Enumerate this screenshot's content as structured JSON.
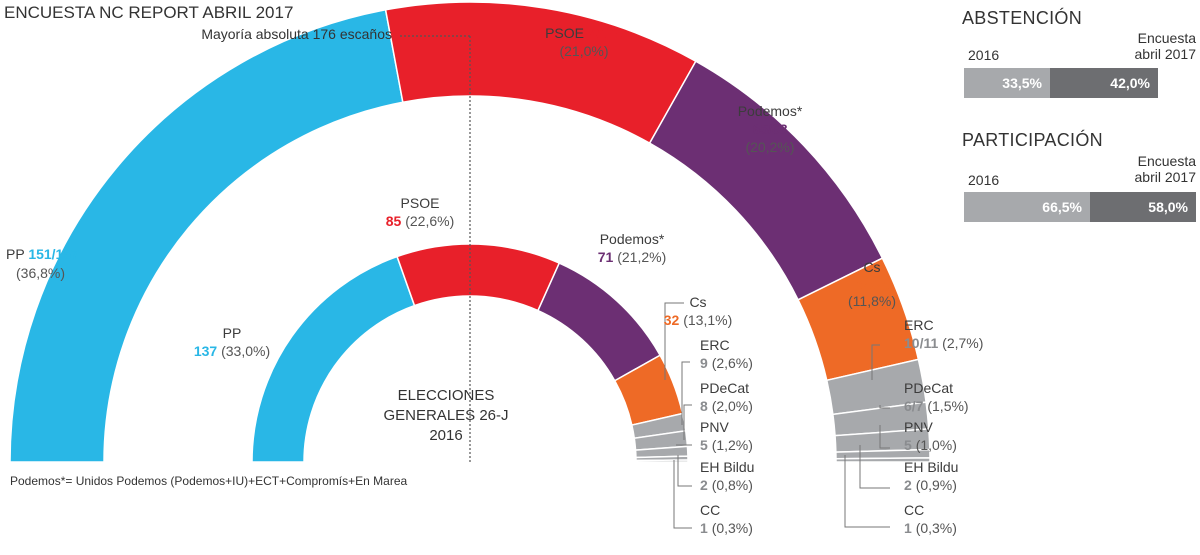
{
  "colors": {
    "PP": "#29b7e6",
    "PSOE": "#e8202a",
    "Podemos": "#6c2f73",
    "Cs": "#ee6a26",
    "minor": "#a7a9ac",
    "text": "#3c3c3c",
    "abst_2016": "#a7a9ac",
    "abst_2017": "#6d6e71"
  },
  "header": {
    "title": "ENCUESTA NC REPORT ABRIL 2017",
    "majority": "Mayoría absoluta 176 escaños"
  },
  "inner_center": [
    "ELECCIONES",
    "GENERALES 26-J",
    "2016"
  ],
  "footnote": "Podemos*= Unidos Podemos (Podemos+IU)+ECT+Compromís+En Marea",
  "side": {
    "abstencion": {
      "title": "ABSTENCIÓN",
      "label_2016": "2016",
      "label_2017": [
        "Encuesta",
        "abril 2017"
      ],
      "value_2016": "33,5%",
      "value_2017": "42,0%"
    },
    "participacion": {
      "title": "PARTICIPACIÓN",
      "label_2016": "2016",
      "label_2017": [
        "Encuesta",
        "abril 2017"
      ],
      "value_2016": "66,5%",
      "value_2017": "58,0%"
    }
  },
  "chart_data": {
    "type": "pie",
    "total_seats": 350,
    "majority": 176,
    "outer": {
      "name": "Encuesta NC Report abril 2017",
      "parties": [
        {
          "party": "PP",
          "seats": 154,
          "seats_label": "151/157",
          "pct": "(36,8%)"
        },
        {
          "party": "PSOE",
          "seats": 77.5,
          "seats_label": "76/79",
          "pct": "(21,0%)"
        },
        {
          "party": "Podemos*",
          "seats": 66.5,
          "seats_label": "65/68",
          "pct": "(20,2%)"
        },
        {
          "party": "Cs",
          "seats": 26,
          "seats_label": "24/28",
          "pct": "(11,8%)"
        },
        {
          "party": "ERC",
          "seats": 10.5,
          "seats_label": "10/11",
          "pct": "(2,7%)"
        },
        {
          "party": "PDeCat",
          "seats": 6.5,
          "seats_label": "6/7",
          "pct": "(1,5%)"
        },
        {
          "party": "PNV",
          "seats": 5,
          "seats_label": "5",
          "pct": "(1,0%)"
        },
        {
          "party": "EH Bildu",
          "seats": 2,
          "seats_label": "2",
          "pct": "(0,9%)"
        },
        {
          "party": "CC",
          "seats": 1,
          "seats_label": "1",
          "pct": "(0,3%)"
        }
      ]
    },
    "inner": {
      "name": "Elecciones generales 26-J 2016",
      "parties": [
        {
          "party": "PP",
          "seats": 137,
          "seats_label": "137",
          "pct": "(33,0%)"
        },
        {
          "party": "PSOE",
          "seats": 85,
          "seats_label": "85",
          "pct": "(22,6%)"
        },
        {
          "party": "Podemos*",
          "seats": 71,
          "seats_label": "71",
          "pct": "(21,2%)"
        },
        {
          "party": "Cs",
          "seats": 32,
          "seats_label": "32",
          "pct": "(13,1%)"
        },
        {
          "party": "ERC",
          "seats": 9,
          "seats_label": "9",
          "pct": "(2,6%)"
        },
        {
          "party": "PDeCat",
          "seats": 8,
          "seats_label": "8",
          "pct": "(2,0%)"
        },
        {
          "party": "PNV",
          "seats": 5,
          "seats_label": "5",
          "pct": "(1,2%)"
        },
        {
          "party": "EH Bildu",
          "seats": 2,
          "seats_label": "2",
          "pct": "(0,8%)"
        },
        {
          "party": "CC",
          "seats": 1,
          "seats_label": "1",
          "pct": "(0,3%)"
        }
      ]
    }
  }
}
